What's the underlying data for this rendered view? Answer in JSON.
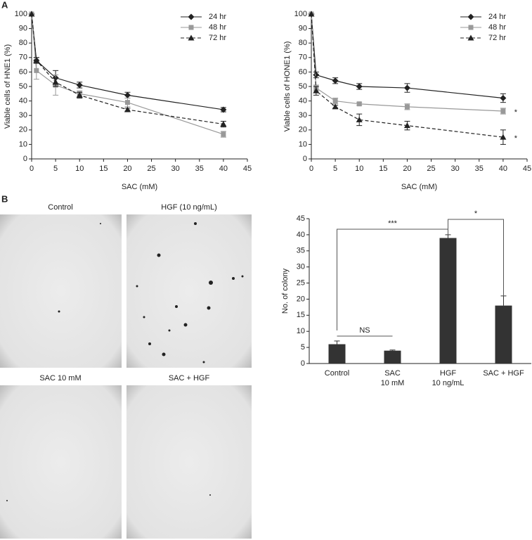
{
  "panel_labels": [
    "A",
    "B"
  ],
  "images": [
    {
      "caption": "Control"
    },
    {
      "caption": "HGF (10 ng/mL)"
    },
    {
      "caption": "SAC 10 mM"
    },
    {
      "caption": "SAC + HGF"
    }
  ],
  "chart_data": [
    {
      "type": "line",
      "xlabel": "SAC (mM)",
      "ylabel": "Viable cells of HNE1 (%)",
      "x": [
        0,
        1,
        5,
        10,
        20,
        40
      ],
      "xlim": [
        0,
        45
      ],
      "xticks": [
        0,
        5,
        10,
        15,
        20,
        25,
        30,
        35,
        40,
        45
      ],
      "ylim": [
        0,
        100
      ],
      "yticks": [
        0,
        10,
        20,
        30,
        40,
        50,
        60,
        70,
        80,
        90,
        100
      ],
      "legend": "top-right",
      "series": [
        {
          "name": "24 hr",
          "color": "#222222",
          "marker": "diamond",
          "dashed": false,
          "values": [
            100,
            68,
            56,
            51,
            44,
            34
          ],
          "errors": [
            0,
            2,
            5,
            2,
            2,
            1.5
          ]
        },
        {
          "name": "48 hr",
          "color": "#999999",
          "marker": "square",
          "dashed": false,
          "values": [
            100,
            61,
            51,
            45,
            39,
            17
          ],
          "errors": [
            0,
            6,
            7,
            2,
            3,
            2
          ]
        },
        {
          "name": "72 hr",
          "color": "#222222",
          "marker": "triangle",
          "dashed": true,
          "values": [
            100,
            68,
            53,
            44,
            34,
            24
          ],
          "errors": [
            0,
            2,
            3,
            2,
            1,
            2
          ]
        }
      ]
    },
    {
      "type": "line",
      "xlabel": "SAC (mM)",
      "ylabel": "Viable cells of HONE1 (%)",
      "x": [
        0,
        1,
        5,
        10,
        20,
        40
      ],
      "xlim": [
        0,
        45
      ],
      "xticks": [
        0,
        5,
        10,
        15,
        20,
        25,
        30,
        35,
        40,
        45
      ],
      "ylim": [
        0,
        100
      ],
      "yticks": [
        0,
        10,
        20,
        30,
        40,
        50,
        60,
        70,
        80,
        90,
        100
      ],
      "legend": "top-right",
      "series": [
        {
          "name": "24 hr",
          "color": "#222222",
          "marker": "diamond",
          "dashed": false,
          "values": [
            100,
            58,
            54,
            50,
            49,
            42
          ],
          "errors": [
            0,
            2,
            2,
            2,
            3,
            3
          ]
        },
        {
          "name": "48 hr",
          "color": "#999999",
          "marker": "square",
          "dashed": false,
          "values": [
            100,
            49,
            40,
            38,
            36,
            33
          ],
          "errors": [
            0,
            2,
            2,
            1,
            2,
            2
          ]
        },
        {
          "name": "72 hr",
          "color": "#222222",
          "marker": "triangle",
          "dashed": true,
          "values": [
            100,
            47,
            36,
            27,
            23,
            15
          ],
          "errors": [
            0,
            3,
            1,
            4,
            3,
            5
          ]
        }
      ],
      "annotations": [
        "*",
        "*"
      ]
    },
    {
      "type": "bar",
      "ylabel": "No. of colony",
      "categories": [
        [
          "Control"
        ],
        [
          "SAC",
          "10 mM"
        ],
        [
          "HGF",
          "10 ng/mL"
        ],
        [
          "SAC + HGF"
        ]
      ],
      "values": [
        6,
        4,
        39,
        18
      ],
      "errors": [
        1,
        0.2,
        1,
        3
      ],
      "color": "#333333",
      "ylim": [
        0,
        45
      ],
      "yticks": [
        0,
        5,
        10,
        15,
        20,
        25,
        30,
        35,
        40,
        45
      ],
      "annotations": [
        "***",
        "*",
        "NS"
      ]
    }
  ]
}
